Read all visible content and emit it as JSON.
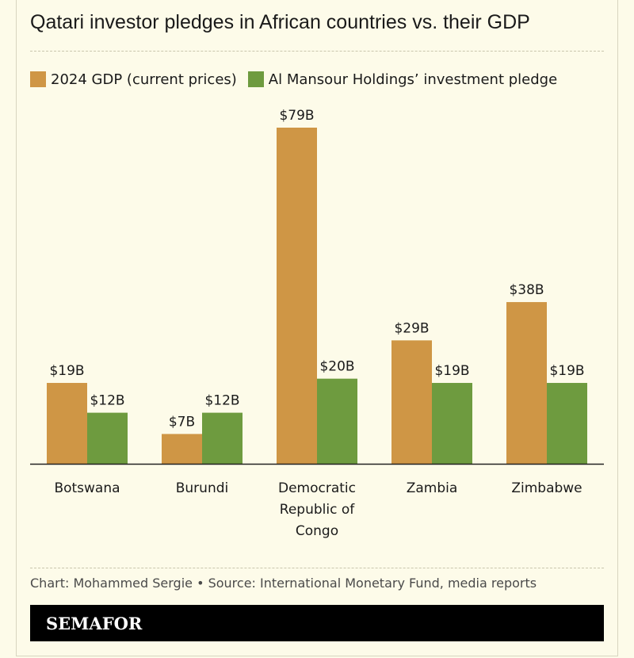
{
  "header": {
    "title": "Qatari investor pledges in African countries vs. their GDP"
  },
  "legend": {
    "gdp_label": "2024 GDP (current prices)",
    "pledge_label": "Al Mansour Holdings’ investment pledge"
  },
  "colors": {
    "gdp": "#cf9645",
    "pledge": "#6e9b3f"
  },
  "chart_data": {
    "type": "bar",
    "title": "Qatari investor pledges in African countries vs. their GDP",
    "categories": [
      [
        "Botswana"
      ],
      [
        "Burundi"
      ],
      [
        "Democratic",
        "Republic of",
        "Congo"
      ],
      [
        "Zambia"
      ],
      [
        "Zimbabwe"
      ]
    ],
    "series": [
      {
        "name": "2024 GDP (current prices)",
        "values": [
          19,
          7,
          79,
          29,
          38
        ],
        "labels": [
          "$19B",
          "$7B",
          "$79B",
          "$29B",
          "$38B"
        ]
      },
      {
        "name": "Al Mansour Holdings’ investment pledge",
        "values": [
          12,
          12,
          20,
          19,
          19
        ],
        "labels": [
          "$12B",
          "$12B",
          "$20B",
          "$19B",
          "$19B"
        ]
      }
    ],
    "unit": "billion USD",
    "ylim": [
      0,
      79
    ],
    "xlabel": "",
    "ylabel": "",
    "grid": false,
    "legend_position": "top-left"
  },
  "footer": {
    "source": "Chart: Mohammed Sergie • Source: International Monetary Fund, media reports",
    "brand": "SEMAFOR"
  }
}
